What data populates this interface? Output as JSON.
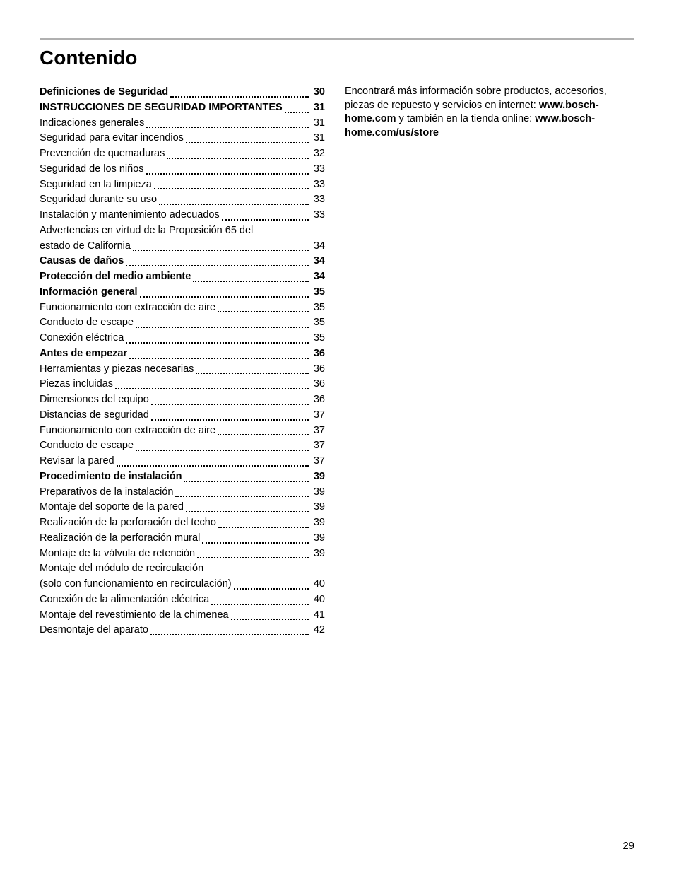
{
  "title": "Contenido",
  "page_number": "29",
  "info_paragraph": {
    "text1": "Encontrará más información sobre productos, accesorios, piezas de repuesto y servicios en internet: ",
    "url1": "www.bosch-home.com",
    "text2": " y también en la tienda online: ",
    "url2": "www.bosch-home.com/us/store"
  },
  "toc": [
    {
      "label": "Definiciones de Seguridad ",
      "page": "30",
      "bold": true
    },
    {
      "label": "INSTRUCCIONES DE SEGURIDAD IMPORTANTES",
      "page": "31",
      "bold": true,
      "tight": true
    },
    {
      "label": "Indicaciones generales ",
      "page": "31"
    },
    {
      "label": "Seguridad para evitar incendios ",
      "page": "31"
    },
    {
      "label": "Prevención de quemaduras ",
      "page": "32"
    },
    {
      "label": "Seguridad de los niños ",
      "page": "33"
    },
    {
      "label": "Seguridad en la limpieza ",
      "page": "33"
    },
    {
      "label": "Seguridad durante su uso ",
      "page": "33"
    },
    {
      "label": "Instalación y mantenimiento adecuados ",
      "page": "33"
    },
    {
      "label_top": "Advertencias en virtud de la Proposición 65 del",
      "label_bottom": "estado de California ",
      "page": "34",
      "multiline": true
    },
    {
      "label": "Causas de daños ",
      "page": "34",
      "bold": true
    },
    {
      "label": "Protección del medio ambiente ",
      "page": "34",
      "bold": true
    },
    {
      "label": "Información general ",
      "page": "35",
      "bold": true
    },
    {
      "label": "Funcionamiento con extracción de aire ",
      "page": "35"
    },
    {
      "label": "Conducto de escape ",
      "page": "35"
    },
    {
      "label": "Conexión eléctrica ",
      "page": "35"
    },
    {
      "label": "Antes de empezar ",
      "page": "36",
      "bold": true
    },
    {
      "label": "Herramientas y piezas necesarias ",
      "page": "36"
    },
    {
      "label": "Piezas incluidas ",
      "page": "36"
    },
    {
      "label": "Dimensiones del equipo ",
      "page": "36"
    },
    {
      "label": "Distancias de seguridad ",
      "page": "37"
    },
    {
      "label": "Funcionamiento con extracción de aire ",
      "page": "37"
    },
    {
      "label": "Conducto de escape ",
      "page": "37"
    },
    {
      "label": "Revisar la pared ",
      "page": "37"
    },
    {
      "label": "Procedimiento de instalación ",
      "page": "39",
      "bold": true
    },
    {
      "label": "Preparativos de la instalación ",
      "page": "39"
    },
    {
      "label": "Montaje del soporte de la pared ",
      "page": "39"
    },
    {
      "label": "Realización de la perforación del techo ",
      "page": "39"
    },
    {
      "label": "Realización de la perforación mural ",
      "page": "39"
    },
    {
      "label": "Montaje de la válvula de retención ",
      "page": "39"
    },
    {
      "label_top": "Montaje del módulo de recirculación",
      "label_bottom": "(solo con funcionamiento en recirculación) ",
      "page": "40",
      "multiline": true
    },
    {
      "label": "Conexión de la alimentación eléctrica ",
      "page": "40"
    },
    {
      "label": "Montaje del revestimiento de la chimenea ",
      "page": "41"
    },
    {
      "label": "Desmontaje del aparato ",
      "page": "42"
    }
  ]
}
